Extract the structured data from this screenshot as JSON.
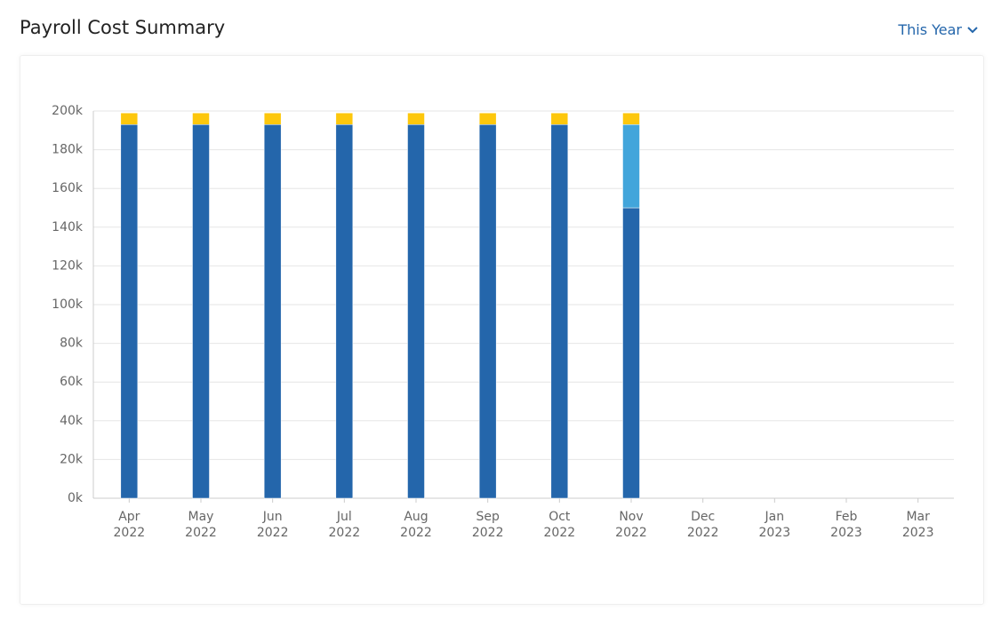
{
  "chart_data": {
    "type": "stacked-bar",
    "title": "Payroll Cost Summary",
    "categories": [
      "Apr 2022",
      "May 2022",
      "Jun 2022",
      "Jul 2022",
      "Aug 2022",
      "Sep 2022",
      "Oct 2022",
      "Nov 2022",
      "Dec 2022",
      "Jan 2023",
      "Feb 2023",
      "Mar 2023"
    ],
    "series": [
      {
        "color": "#2466ab",
        "values": [
          193000,
          193000,
          193000,
          193000,
          193000,
          193000,
          193000,
          150000,
          null,
          null,
          null,
          null
        ]
      },
      {
        "color": "#42a5db",
        "values": [
          null,
          null,
          null,
          null,
          null,
          null,
          null,
          43000,
          null,
          null,
          null,
          null
        ]
      },
      {
        "color": "#fdc70c",
        "values": [
          6000,
          6000,
          6000,
          6000,
          6000,
          6000,
          6000,
          6000,
          null,
          null,
          null,
          null
        ]
      }
    ],
    "ylim": [
      0,
      200000
    ],
    "yticks": [
      {
        "value": 0,
        "label": "0k"
      },
      {
        "value": 20000,
        "label": "20k"
      },
      {
        "value": 40000,
        "label": "40k"
      },
      {
        "value": 60000,
        "label": "60k"
      },
      {
        "value": 80000,
        "label": "80k"
      },
      {
        "value": 100000,
        "label": "100k"
      },
      {
        "value": 120000,
        "label": "120k"
      },
      {
        "value": 140000,
        "label": "140k"
      },
      {
        "value": 160000,
        "label": "160k"
      },
      {
        "value": 180000,
        "label": "180k"
      },
      {
        "value": 200000,
        "label": "200k"
      }
    ],
    "grid": true
  },
  "period_selector": "This Year"
}
